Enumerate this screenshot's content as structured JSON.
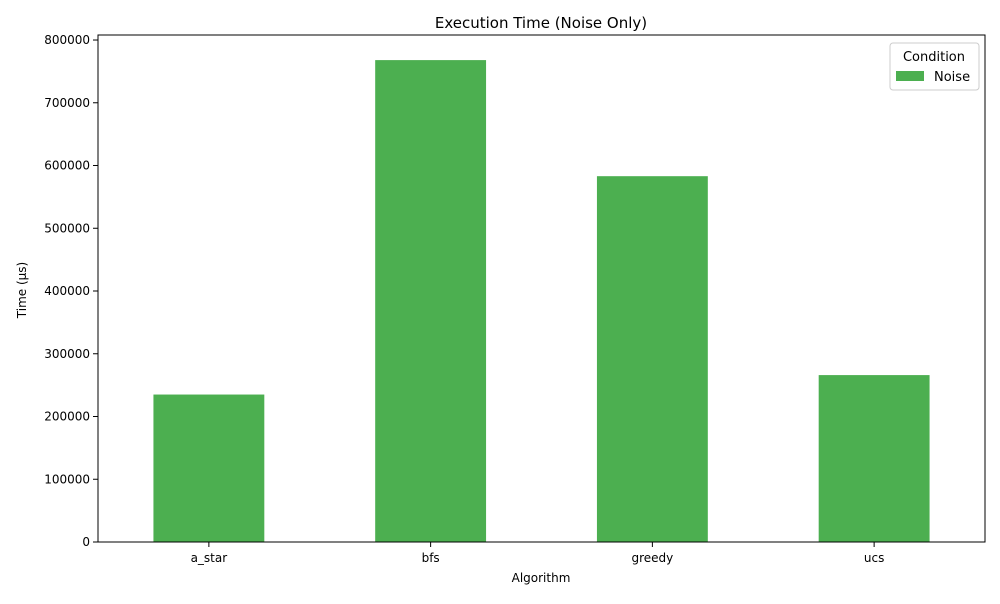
{
  "chart_data": {
    "type": "bar",
    "title": "Execution Time (Noise Only)",
    "xlabel": "Algorithm",
    "ylabel": "Time (µs)",
    "categories": [
      "a_star",
      "bfs",
      "greedy",
      "ucs"
    ],
    "series": [
      {
        "name": "Noise",
        "values": [
          235000,
          768000,
          583000,
          266000
        ],
        "color": "#4caf50"
      }
    ],
    "ylim": [
      0,
      808000
    ],
    "yticks": [
      0,
      100000,
      200000,
      300000,
      400000,
      500000,
      600000,
      700000,
      800000
    ],
    "legend": {
      "title": "Condition",
      "placement": "top-right"
    },
    "grid": false
  }
}
